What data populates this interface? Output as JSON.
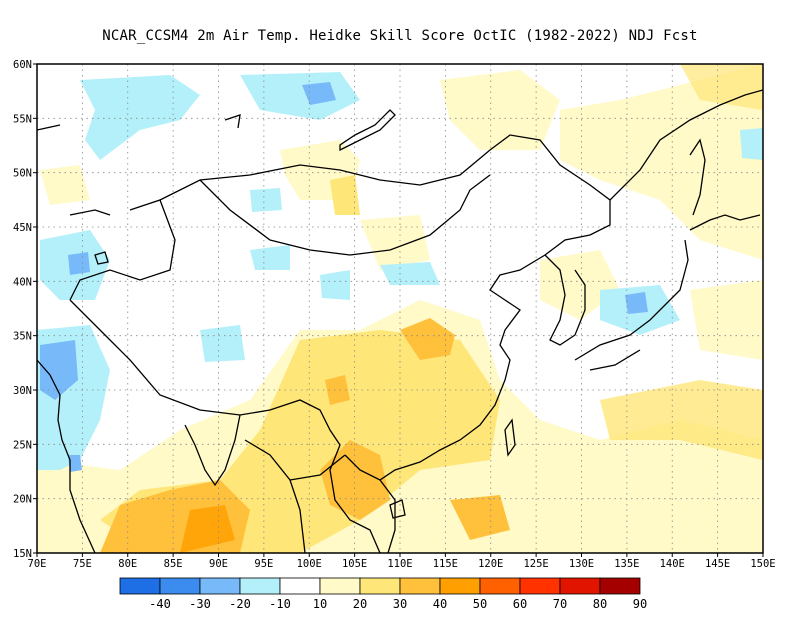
{
  "title": "NCAR_CCSM4  2m Air Temp. Heidke Skill Score OctIC (1982-2022) NDJ Fcst",
  "map": {
    "lon_range": [
      70,
      150
    ],
    "lat_range": [
      15,
      60
    ],
    "x_ticks": [
      "70E",
      "75E",
      "80E",
      "85E",
      "90E",
      "95E",
      "100E",
      "105E",
      "110E",
      "115E",
      "120E",
      "125E",
      "130E",
      "135E",
      "140E",
      "145E",
      "150E"
    ],
    "y_ticks": [
      "15N",
      "20N",
      "25N",
      "30N",
      "35N",
      "40N",
      "45N",
      "50N",
      "55N",
      "60N"
    ],
    "grid": "dotted"
  },
  "colorbar": {
    "colors": [
      "#1e6ee6",
      "#3c8cf0",
      "#78b9fa",
      "#b4f0fa",
      "#ffffff",
      "#fffac8",
      "#ffe678",
      "#ffc03c",
      "#ffa000",
      "#ff6000",
      "#ff3200",
      "#e11400",
      "#a50000"
    ],
    "labels": [
      "-40",
      "-30",
      "-20",
      "-10",
      "10",
      "20",
      "30",
      "40",
      "50",
      "60",
      "70",
      "80",
      "90"
    ]
  }
}
